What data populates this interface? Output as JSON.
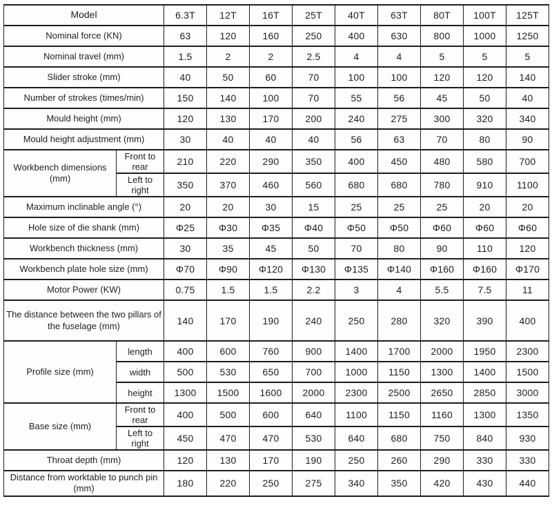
{
  "table": {
    "header": {
      "label": "Model",
      "models": [
        "6.3T",
        "12T",
        "16T",
        "25T",
        "40T",
        "63T",
        "80T",
        "100T",
        "125T"
      ]
    },
    "rows": [
      {
        "name": "nominal-force",
        "label": "Nominal force (KN)",
        "values": [
          "63",
          "120",
          "160",
          "250",
          "400",
          "630",
          "800",
          "1000",
          "1250"
        ]
      },
      {
        "name": "nominal-travel",
        "label": "Nominal travel (mm)",
        "values": [
          "1.5",
          "2",
          "2",
          "2.5",
          "4",
          "4",
          "5",
          "5",
          "5"
        ]
      },
      {
        "name": "slider-stroke",
        "label": "Slider stroke (mm)",
        "values": [
          "40",
          "50",
          "60",
          "70",
          "100",
          "100",
          "120",
          "120",
          "140"
        ]
      },
      {
        "name": "number-of-strokes",
        "label": "Number of strokes (times/min)",
        "values": [
          "150",
          "140",
          "100",
          "70",
          "55",
          "56",
          "45",
          "50",
          "40"
        ]
      },
      {
        "name": "mould-height",
        "label": "Mould height (mm)",
        "values": [
          "120",
          "130",
          "170",
          "200",
          "240",
          "275",
          "300",
          "320",
          "340"
        ]
      },
      {
        "name": "mould-height-adjustment",
        "label": "Mould height adjustment (mm)",
        "values": [
          "30",
          "40",
          "40",
          "40",
          "56",
          "63",
          "70",
          "80",
          "90"
        ]
      },
      {
        "name": "workbench-dimensions",
        "label": "Workbench dimensions (mm)",
        "sub_rows": [
          {
            "label": "Front to rear",
            "values": [
              "210",
              "220",
              "290",
              "350",
              "400",
              "450",
              "480",
              "580",
              "700"
            ]
          },
          {
            "label": "Left to right",
            "values": [
              "350",
              "370",
              "460",
              "560",
              "680",
              "680",
              "780",
              "910",
              "1100"
            ]
          }
        ]
      },
      {
        "name": "maximum-inclinable-angle",
        "label": "Maximum inclinable angle (°)",
        "values": [
          "20",
          "20",
          "30",
          "15",
          "25",
          "25",
          "25",
          "20",
          "20"
        ]
      },
      {
        "name": "hole-size-of-die-shank",
        "label": "Hole size of die shank (mm)",
        "values": [
          "Φ25",
          "Φ30",
          "Φ35",
          "Φ40",
          "Φ50",
          "Φ50",
          "Φ60",
          "Φ60",
          "Φ60"
        ]
      },
      {
        "name": "workbench-thickness",
        "label": "Workbench thickness (mm)",
        "values": [
          "30",
          "35",
          "45",
          "50",
          "70",
          "80",
          "90",
          "110",
          "120"
        ]
      },
      {
        "name": "workbench-plate-hole-size",
        "label": "Workbench plate hole size (mm)",
        "values": [
          "Φ70",
          "Φ90",
          "Φ120",
          "Φ130",
          "Φ135",
          "Φ140",
          "Φ160",
          "Φ160",
          "Φ170"
        ]
      },
      {
        "name": "motor-power",
        "label": "Motor Power (KW)",
        "values": [
          "0.75",
          "1.5",
          "1.5",
          "2.2",
          "3",
          "4",
          "5.5",
          "7.5",
          "11"
        ]
      },
      {
        "name": "pillar-distance",
        "label": "The distance between the two pillars of the fuselage (mm)",
        "values": [
          "140",
          "170",
          "190",
          "240",
          "250",
          "280",
          "320",
          "390",
          "400"
        ]
      },
      {
        "name": "profile-size",
        "label": "Profile size (mm)",
        "sub_rows": [
          {
            "label": "length",
            "values": [
              "400",
              "600",
              "760",
              "900",
              "1400",
              "1700",
              "2000",
              "1950",
              "2300"
            ]
          },
          {
            "label": "width",
            "values": [
              "500",
              "530",
              "650",
              "700",
              "1000",
              "1150",
              "1300",
              "1400",
              "1500"
            ]
          },
          {
            "label": "height",
            "values": [
              "1300",
              "1500",
              "1600",
              "2000",
              "2300",
              "2500",
              "2650",
              "2850",
              "3000"
            ]
          }
        ]
      },
      {
        "name": "base-size",
        "label": "Base size (mm)",
        "sub_rows": [
          {
            "label": "Front to rear",
            "values": [
              "400",
              "500",
              "600",
              "640",
              "1100",
              "1150",
              "1160",
              "1300",
              "1350"
            ]
          },
          {
            "label": "Left to right",
            "values": [
              "450",
              "470",
              "470",
              "530",
              "640",
              "680",
              "750",
              "840",
              "930"
            ]
          }
        ]
      },
      {
        "name": "throat-depth",
        "label": "Throat depth (mm)",
        "values": [
          "120",
          "130",
          "170",
          "190",
          "250",
          "260",
          "290",
          "330",
          "330"
        ]
      },
      {
        "name": "worktable-to-punch-pin-distance",
        "label": "Distance from worktable to punch pin (mm)",
        "values": [
          "180",
          "220",
          "250",
          "275",
          "340",
          "350",
          "420",
          "430",
          "440"
        ]
      }
    ]
  }
}
